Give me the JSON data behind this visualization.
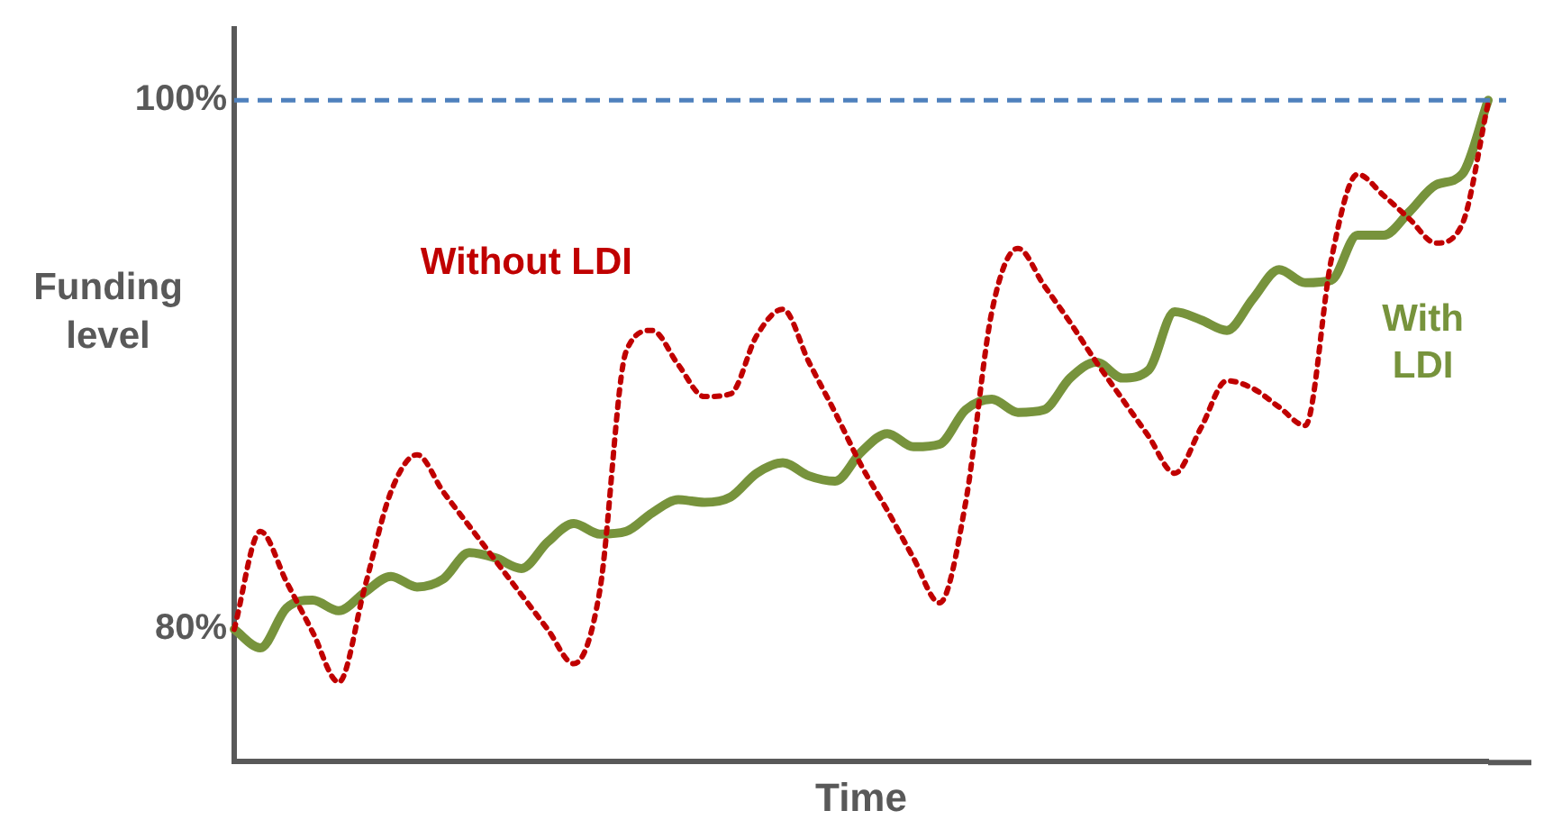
{
  "chart_data": {
    "type": "line",
    "xlabel": "Time",
    "ylabel": "Funding level",
    "categories": [
      null,
      null,
      null,
      null,
      null,
      null,
      null,
      null,
      null,
      null,
      null,
      null,
      null,
      null,
      null,
      null,
      null,
      null,
      null,
      null,
      null,
      null,
      null,
      null,
      null,
      null,
      null,
      null,
      null,
      null,
      null,
      null,
      null,
      null,
      null,
      null,
      null,
      null,
      null,
      null,
      null,
      null,
      null,
      null,
      null,
      null,
      null,
      null,
      null
    ],
    "series": [
      {
        "name": "Without LDI",
        "color": "#c00000",
        "line_style": "dotted",
        "values": [
          80,
          83.7,
          81.8,
          79.9,
          78,
          81.6,
          85.2,
          86.6,
          85.2,
          83.9,
          82.6,
          81.3,
          80,
          78.7,
          81.5,
          90.5,
          91.3,
          90,
          88.8,
          88.9,
          91.1,
          92.1,
          90.1,
          88.2,
          86.2,
          84.5,
          82.7,
          81,
          84.8,
          92,
          94.4,
          93,
          91.6,
          90.1,
          88.7,
          87.3,
          85.9,
          87.6,
          89.4,
          89.1,
          88.4,
          87.7,
          94,
          97.2,
          96.4,
          95.5,
          94.6,
          95.3,
          99.9
        ]
      },
      {
        "name": "With LDI",
        "color": "#77933c",
        "line_style": "solid",
        "values": [
          80,
          79.3,
          80.8,
          81.1,
          80.7,
          81.4,
          82,
          81.6,
          81.9,
          82.9,
          82.7,
          82.3,
          83.3,
          84,
          83.6,
          83.7,
          84.4,
          84.9,
          84.8,
          85,
          85.9,
          86.3,
          85.8,
          85.6,
          86.7,
          87.4,
          86.9,
          87,
          88.3,
          88.7,
          88.2,
          88.3,
          89.5,
          90.1,
          89.5,
          89.8,
          92,
          91.7,
          91.3,
          92.5,
          93.6,
          93.1,
          93.2,
          94.9,
          94.9,
          95.8,
          96.8,
          97.2,
          100
        ]
      }
    ],
    "ylim": [
      75,
      102.7
    ],
    "yticks": [
      {
        "value": 80,
        "label": "80%"
      },
      {
        "value": 100,
        "label": "100%"
      }
    ],
    "ref_lines": [
      {
        "axis": "y",
        "value": 100,
        "color": "#4f81bd",
        "line_style": "dashed"
      }
    ],
    "grid": false,
    "legend": false,
    "marker": "none",
    "tick_labels": "y"
  }
}
